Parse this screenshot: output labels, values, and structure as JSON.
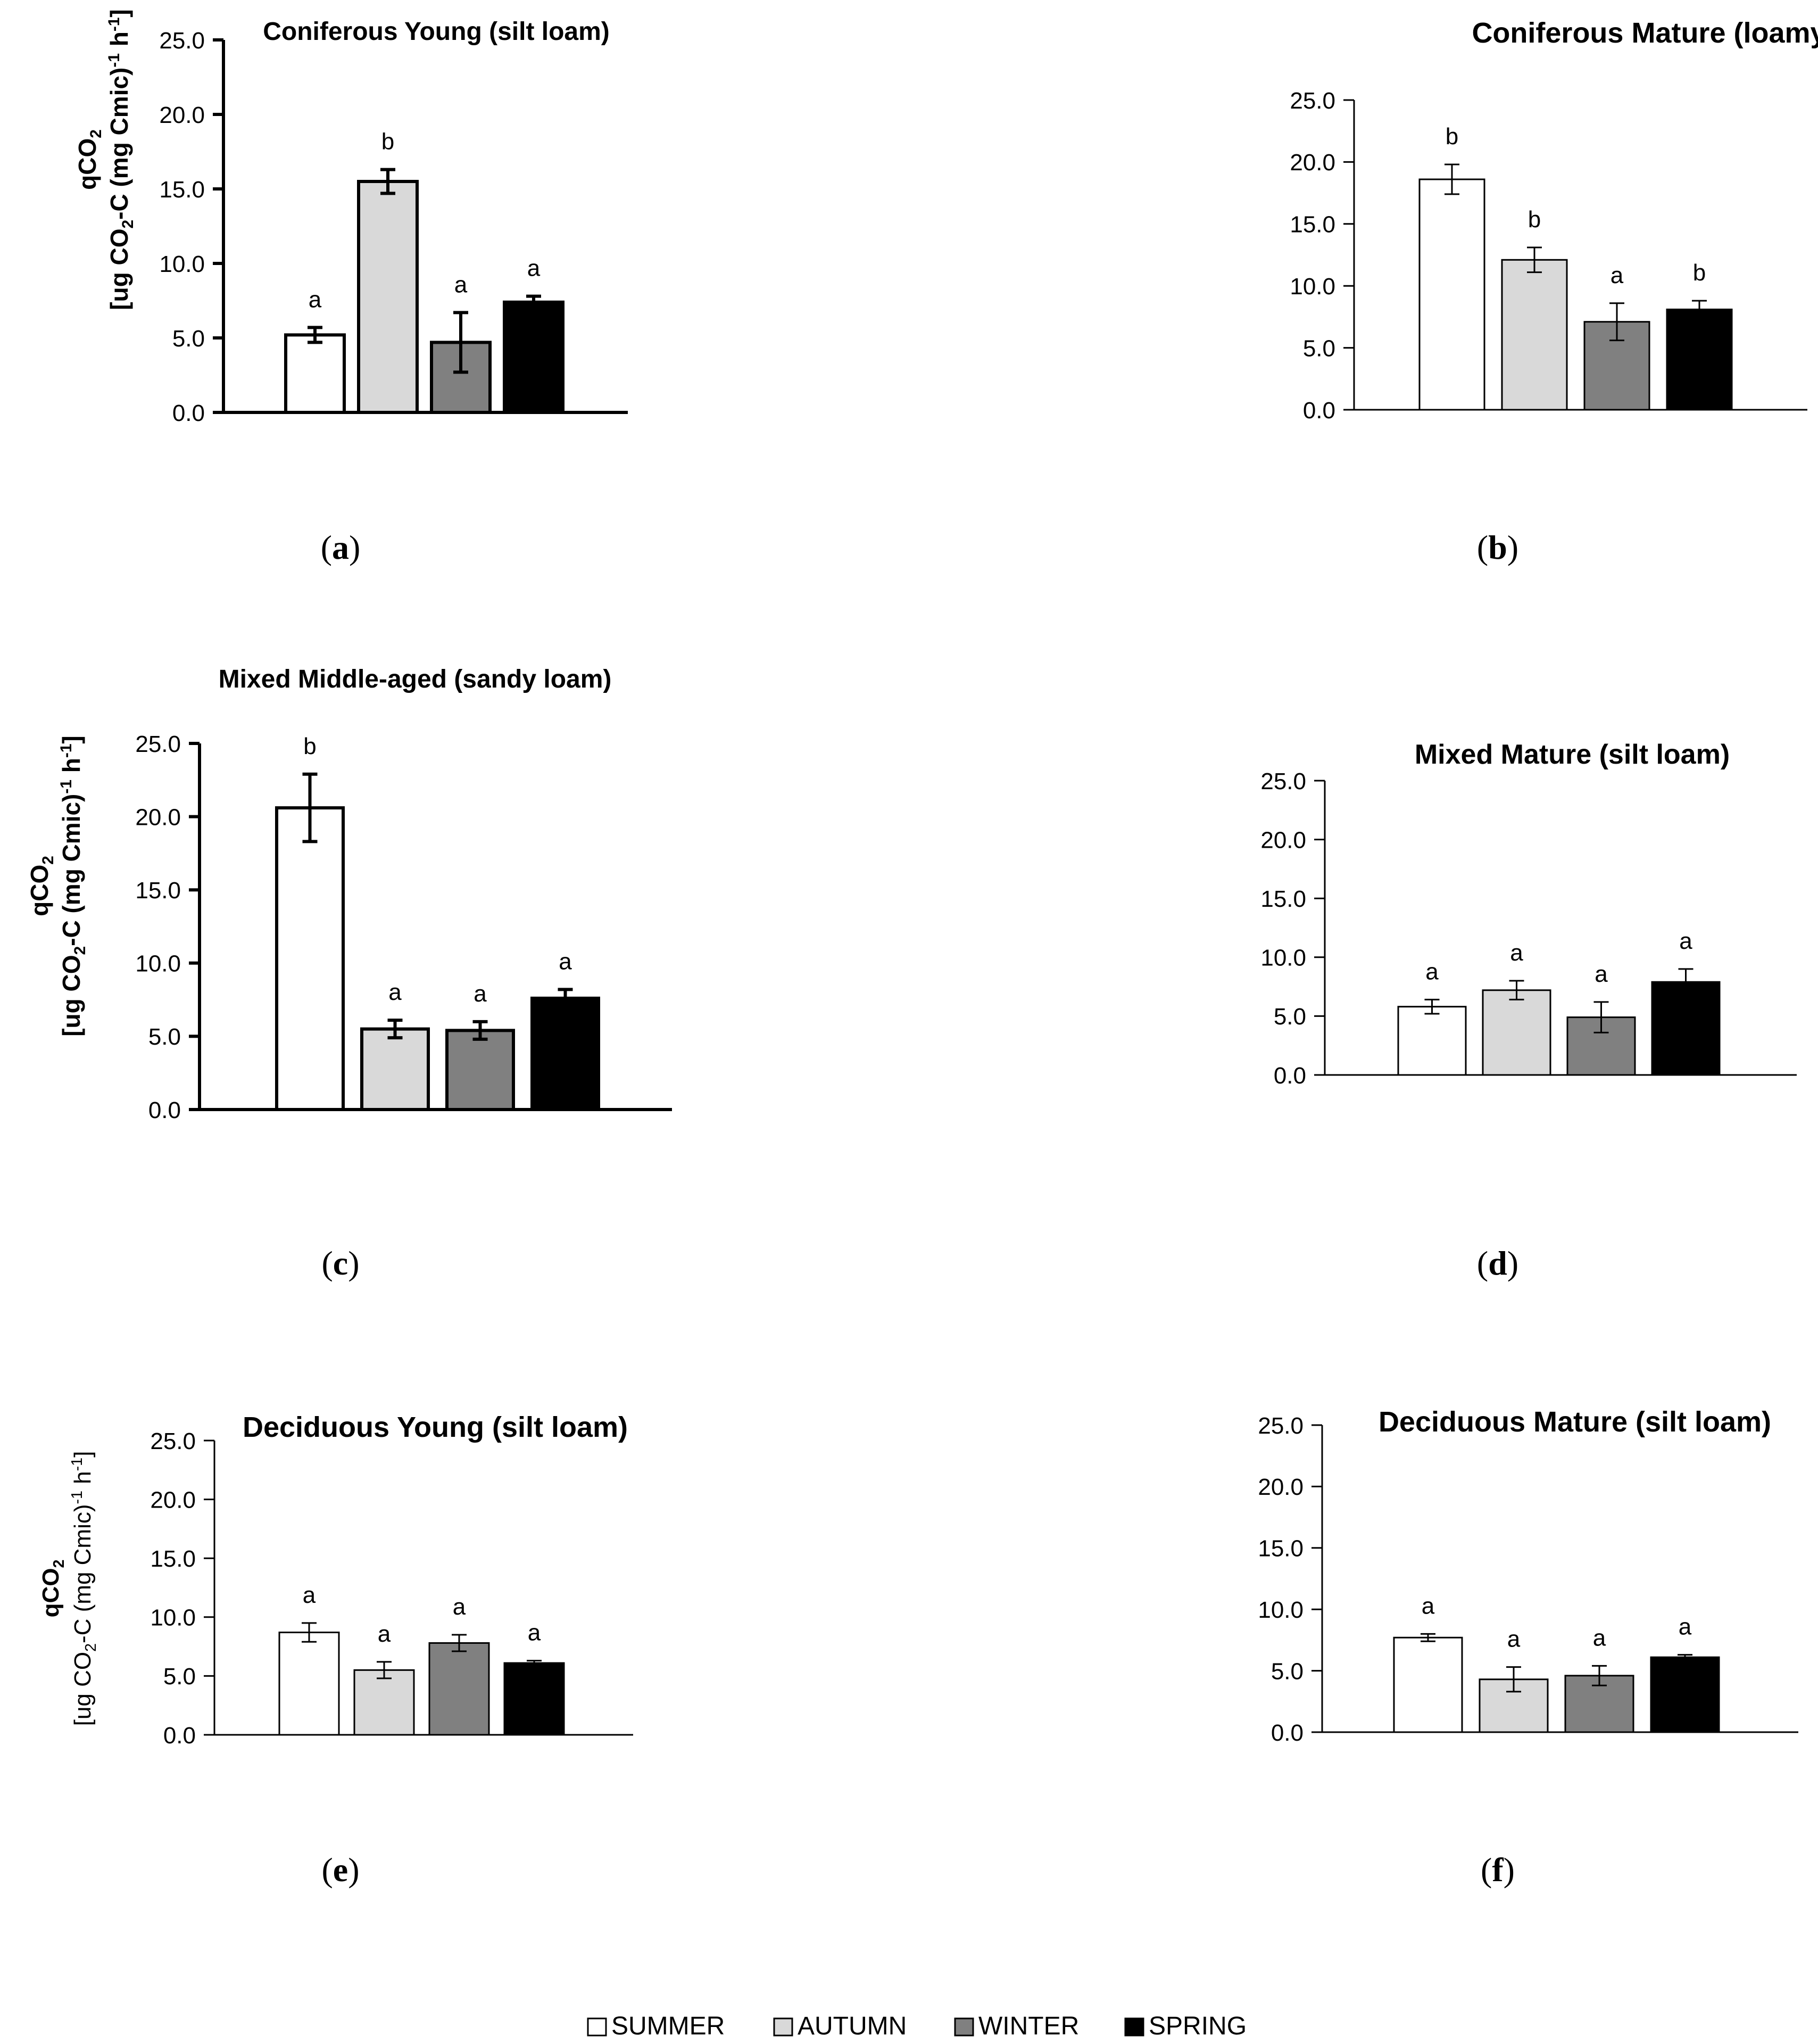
{
  "legend": {
    "items": [
      {
        "label": "SUMMER",
        "color": "#ffffff"
      },
      {
        "label": "AUTUMN",
        "color": "#d9d9d9"
      },
      {
        "label": "WINTER",
        "color": "#808080"
      },
      {
        "label": "SPRING",
        "color": "#000000"
      }
    ]
  },
  "y_label": {
    "line1": "qCO",
    "line1_sub": "2",
    "line2_pre": "[ug CO",
    "line2_sub": "2",
    "line2_mid": "-C (mg Cmic)",
    "line2_sup": "-1",
    "line2_sp": " h",
    "line2_sup2": "-1",
    "line2_end": "]"
  },
  "chart_data": [
    {
      "type": "bar",
      "panel": "a",
      "panel_label": "(a)",
      "title": "Coniferous Young (silt loam)",
      "categories": [
        "SUMMER",
        "AUTUMN",
        "WINTER",
        "SPRING"
      ],
      "values": [
        5.2,
        15.5,
        4.7,
        7.4
      ],
      "errors": [
        0.5,
        0.8,
        2.0,
        0.4
      ],
      "significance": [
        "a",
        "b",
        "a",
        "a"
      ],
      "ylim": [
        0,
        25
      ],
      "yticks": [
        "0.0",
        "5.0",
        "10.0",
        "15.0",
        "20.0",
        "25.0"
      ],
      "ylabel": "qCO2 [ug CO2-C (mg Cmic)-1 h-1]",
      "xlabel": "",
      "grid": false
    },
    {
      "type": "bar",
      "panel": "b",
      "panel_label": "(b)",
      "title": "Coniferous Mature (loamy sand)",
      "categories": [
        "SUMMER",
        "AUTUMN",
        "WINTER",
        "SPRING"
      ],
      "values": [
        18.6,
        12.1,
        7.1,
        8.1
      ],
      "errors": [
        1.2,
        1.0,
        1.5,
        0.7
      ],
      "significance": [
        "b",
        "b",
        "a",
        "b"
      ],
      "ylim": [
        0,
        25
      ],
      "yticks": [
        "0.0",
        "5.0",
        "10.0",
        "15.0",
        "20.0",
        "25.0"
      ],
      "ylabel": "",
      "xlabel": "",
      "grid": false
    },
    {
      "type": "bar",
      "panel": "c",
      "panel_label": "(c)",
      "title": "Mixed Middle-aged (sandy loam)",
      "categories": [
        "SUMMER",
        "AUTUMN",
        "WINTER",
        "SPRING"
      ],
      "values": [
        20.6,
        5.5,
        5.4,
        7.6
      ],
      "errors": [
        2.3,
        0.6,
        0.6,
        0.6
      ],
      "significance": [
        "b",
        "a",
        "a",
        "a"
      ],
      "ylim": [
        0,
        25
      ],
      "yticks": [
        "0.0",
        "5.0",
        "10.0",
        "15.0",
        "20.0",
        "25.0"
      ],
      "ylabel": "qCO2 [ug CO2-C (mg Cmic)-1 h-1]",
      "xlabel": "",
      "grid": false
    },
    {
      "type": "bar",
      "panel": "d",
      "panel_label": "(d)",
      "title": "Mixed Mature (silt loam)",
      "categories": [
        "SUMMER",
        "AUTUMN",
        "WINTER",
        "SPRING"
      ],
      "values": [
        5.8,
        7.2,
        4.9,
        7.9
      ],
      "errors": [
        0.6,
        0.8,
        1.3,
        1.1
      ],
      "significance": [
        "a",
        "a",
        "a",
        "a"
      ],
      "ylim": [
        0,
        25
      ],
      "yticks": [
        "0.0",
        "5.0",
        "10.0",
        "15.0",
        "20.0",
        "25.0"
      ],
      "ylabel": "",
      "xlabel": "",
      "grid": false
    },
    {
      "type": "bar",
      "panel": "e",
      "panel_label": "(e)",
      "title": "Deciduous Young (silt loam)",
      "categories": [
        "SUMMER",
        "AUTUMN",
        "WINTER",
        "SPRING"
      ],
      "values": [
        8.7,
        5.5,
        7.8,
        6.1
      ],
      "errors": [
        0.8,
        0.7,
        0.7,
        0.2
      ],
      "significance": [
        "a",
        "a",
        "a",
        "a"
      ],
      "ylim": [
        0,
        25
      ],
      "yticks": [
        "0.0",
        "5.0",
        "10.0",
        "15.0",
        "20.0",
        "25.0"
      ],
      "ylabel": "qCO2 [ug CO2-C (mg Cmic)-1 h-1]",
      "xlabel": "",
      "grid": false
    },
    {
      "type": "bar",
      "panel": "f",
      "panel_label": "(f)",
      "title": "Deciduous Mature (silt loam)",
      "categories": [
        "SUMMER",
        "AUTUMN",
        "WINTER",
        "SPRING"
      ],
      "values": [
        7.7,
        4.3,
        4.6,
        6.1
      ],
      "errors": [
        0.3,
        1.0,
        0.8,
        0.2
      ],
      "significance": [
        "a",
        "a",
        "a",
        "a"
      ],
      "ylim": [
        0,
        25
      ],
      "yticks": [
        "0.0",
        "5.0",
        "10.0",
        "15.0",
        "20.0",
        "25.0"
      ],
      "ylabel": "",
      "xlabel": "",
      "grid": false
    }
  ]
}
